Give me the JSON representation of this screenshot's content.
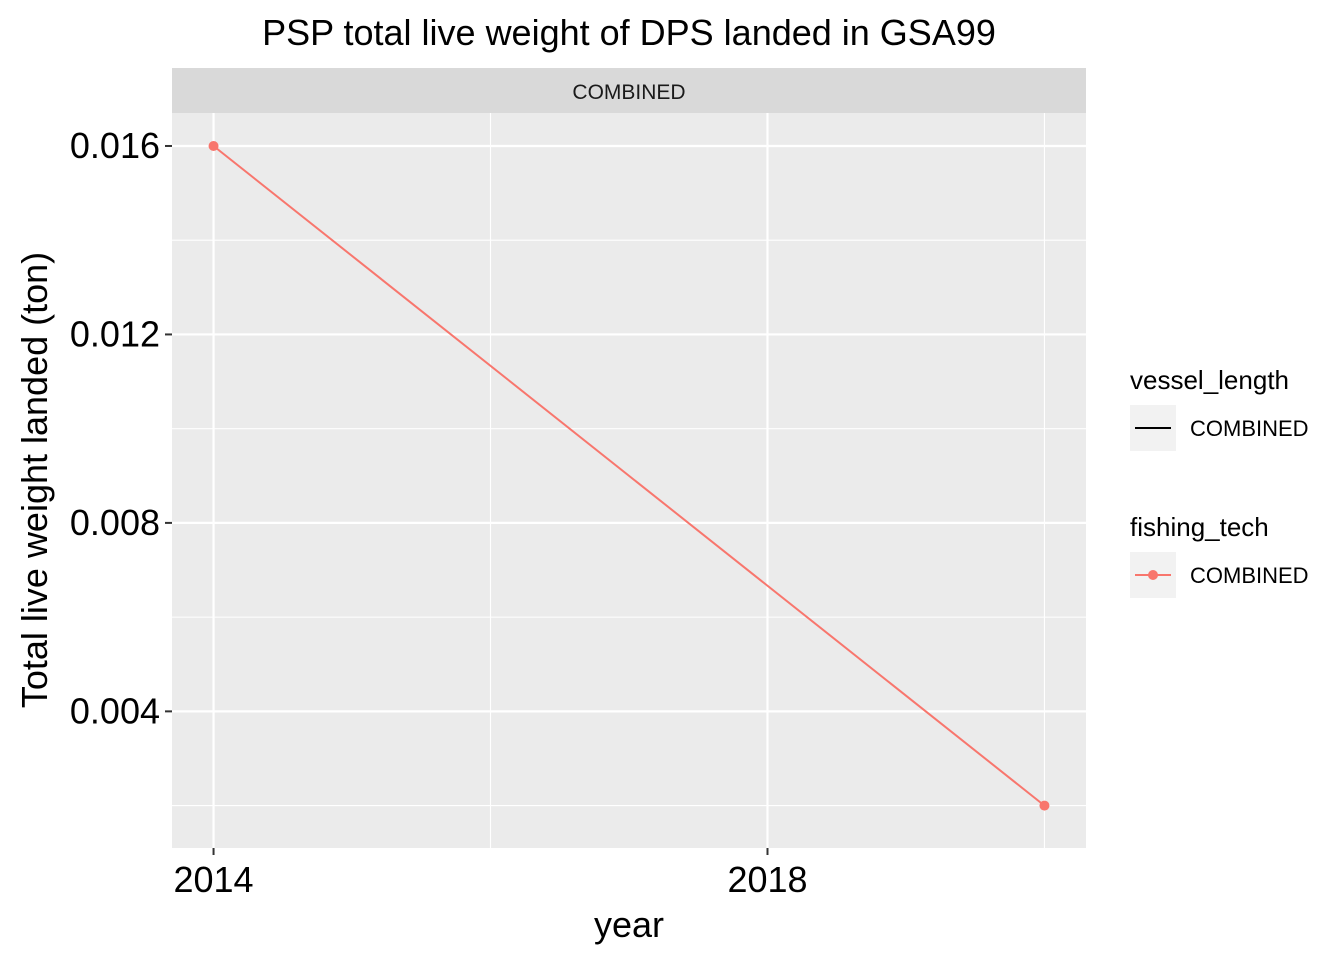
{
  "chart_data": {
    "type": "line",
    "title": "PSP total live weight of DPS landed in GSA99",
    "facet_label": "COMBINED",
    "xlabel": "year",
    "ylabel": "Total live weight landed (ton)",
    "x_ticks": [
      2014,
      2018
    ],
    "y_ticks": [
      0.004,
      0.008,
      0.012,
      0.016
    ],
    "y_tick_labels": [
      "0.004",
      "0.008",
      "0.012",
      "0.016"
    ],
    "xlim": [
      2013.7,
      2020.3
    ],
    "ylim": [
      0.0011,
      0.0167
    ],
    "series": [
      {
        "name": "COMBINED",
        "color": "#F8766D",
        "x": [
          2014,
          2020
        ],
        "y": [
          0.016,
          0.002
        ]
      }
    ],
    "legend": {
      "placement": "right",
      "groups": [
        {
          "title": "vessel_length",
          "label": "COMBINED",
          "key": "line",
          "color": "#000000"
        },
        {
          "title": "fishing_tech",
          "label": "COMBINED",
          "key": "line-point",
          "color": "#F8766D"
        }
      ]
    },
    "grid": true,
    "panel_background": "#EBEBEB",
    "strip_background": "#D9D9D9"
  }
}
